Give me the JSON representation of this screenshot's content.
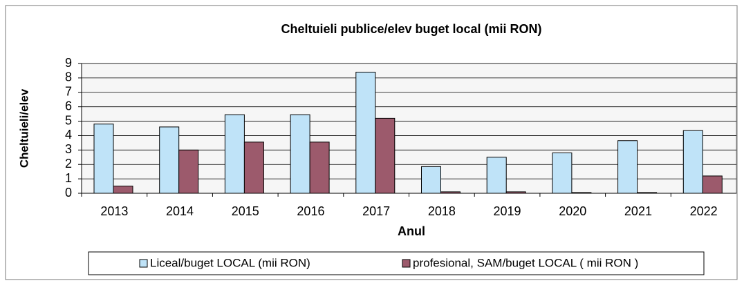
{
  "chart_data": {
    "type": "bar",
    "title": "Cheltuieli publice/elev buget local (mii RON)",
    "x_label": "Anul",
    "y_label": "Cheltuieli/elev",
    "categories": [
      "2013",
      "2014",
      "2015",
      "2016",
      "2017",
      "2018",
      "2019",
      "2020",
      "2021",
      "2022"
    ],
    "series": [
      {
        "name": "Liceal/buget LOCAL (mii RON)",
        "color": "#bfe3f8",
        "values": [
          4.8,
          4.6,
          5.45,
          5.45,
          8.4,
          1.85,
          2.5,
          2.8,
          3.65,
          4.35
        ]
      },
      {
        "name": "profesional, SAM/buget LOCAL ( mii RON )",
        "color": "#9c5a6c",
        "values": [
          0.5,
          3.0,
          3.55,
          3.55,
          5.2,
          0.1,
          0.1,
          0.05,
          0.05,
          1.2
        ]
      }
    ],
    "ylim": [
      0,
      9
    ],
    "yticks": [
      0,
      1,
      2,
      3,
      4,
      5,
      6,
      7,
      8,
      9
    ],
    "grid": true,
    "legend": "bottom"
  }
}
